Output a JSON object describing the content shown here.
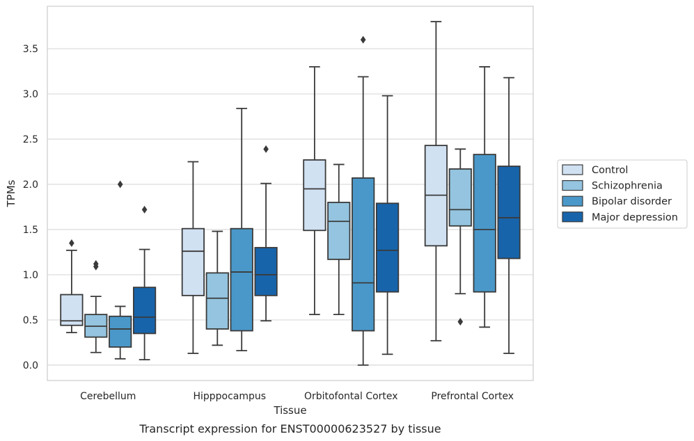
{
  "chart_data": {
    "type": "boxplot",
    "caption": "Transcript expression for ENST00000623527 by tissue",
    "xlabel": "Tissue",
    "ylabel": "TPMs",
    "ylim": [
      -0.17,
      3.97
    ],
    "yticks": [
      "0.0",
      "0.5",
      "1.0",
      "1.5",
      "2.0",
      "2.5",
      "3.0",
      "3.5"
    ],
    "grid": "horizontal",
    "legend_position": "right",
    "categories": [
      "Cerebellum",
      "Hipppocampus",
      "Orbitofontal Cortex",
      "Prefrontal Cortex"
    ],
    "series": [
      {
        "name": "Control",
        "color": "#d0e1f2",
        "boxes": [
          {
            "whislo": 0.36,
            "q1": 0.44,
            "med": 0.49,
            "q3": 0.78,
            "whishi": 1.27,
            "fliers": [
              1.35
            ]
          },
          {
            "whislo": 0.13,
            "q1": 0.77,
            "med": 1.26,
            "q3": 1.51,
            "whishi": 2.25,
            "fliers": []
          },
          {
            "whislo": 0.56,
            "q1": 1.49,
            "med": 1.95,
            "q3": 2.27,
            "whishi": 3.3,
            "fliers": []
          },
          {
            "whislo": 0.27,
            "q1": 1.32,
            "med": 1.88,
            "q3": 2.43,
            "whishi": 3.8,
            "fliers": []
          }
        ]
      },
      {
        "name": "Schizophrenia",
        "color": "#94c4df",
        "boxes": [
          {
            "whislo": 0.14,
            "q1": 0.31,
            "med": 0.43,
            "q3": 0.56,
            "whishi": 0.76,
            "fliers": [
              1.09,
              1.12
            ]
          },
          {
            "whislo": 0.22,
            "q1": 0.4,
            "med": 0.74,
            "q3": 1.02,
            "whishi": 1.48,
            "fliers": []
          },
          {
            "whislo": 0.56,
            "q1": 1.17,
            "med": 1.59,
            "q3": 1.8,
            "whishi": 2.22,
            "fliers": []
          },
          {
            "whislo": 0.79,
            "q1": 1.54,
            "med": 1.72,
            "q3": 2.17,
            "whishi": 2.39,
            "fliers": [
              0.48
            ]
          }
        ]
      },
      {
        "name": "Bipolar disorder",
        "color": "#4a98c9",
        "boxes": [
          {
            "whislo": 0.07,
            "q1": 0.2,
            "med": 0.4,
            "q3": 0.54,
            "whishi": 0.65,
            "fliers": [
              2.0
            ]
          },
          {
            "whislo": 0.16,
            "q1": 0.38,
            "med": 1.03,
            "q3": 1.51,
            "whishi": 2.84,
            "fliers": []
          },
          {
            "whislo": 0.0,
            "q1": 0.38,
            "med": 0.91,
            "q3": 2.07,
            "whishi": 3.19,
            "fliers": [
              3.6
            ]
          },
          {
            "whislo": 0.42,
            "q1": 0.81,
            "med": 1.5,
            "q3": 2.33,
            "whishi": 3.3,
            "fliers": []
          }
        ]
      },
      {
        "name": "Major depression",
        "color": "#1764ab",
        "boxes": [
          {
            "whislo": 0.06,
            "q1": 0.35,
            "med": 0.53,
            "q3": 0.86,
            "whishi": 1.28,
            "fliers": [
              1.72
            ]
          },
          {
            "whislo": 0.49,
            "q1": 0.77,
            "med": 1.0,
            "q3": 1.3,
            "whishi": 2.01,
            "fliers": [
              2.39
            ]
          },
          {
            "whislo": 0.12,
            "q1": 0.81,
            "med": 1.27,
            "q3": 1.79,
            "whishi": 2.98,
            "fliers": []
          },
          {
            "whislo": 0.13,
            "q1": 1.18,
            "med": 1.63,
            "q3": 2.2,
            "whishi": 3.18,
            "fliers": []
          }
        ]
      }
    ]
  },
  "colors": {
    "grid": "#d9d9d9",
    "frame": "#cccccc",
    "line": "#3a3a3a"
  }
}
